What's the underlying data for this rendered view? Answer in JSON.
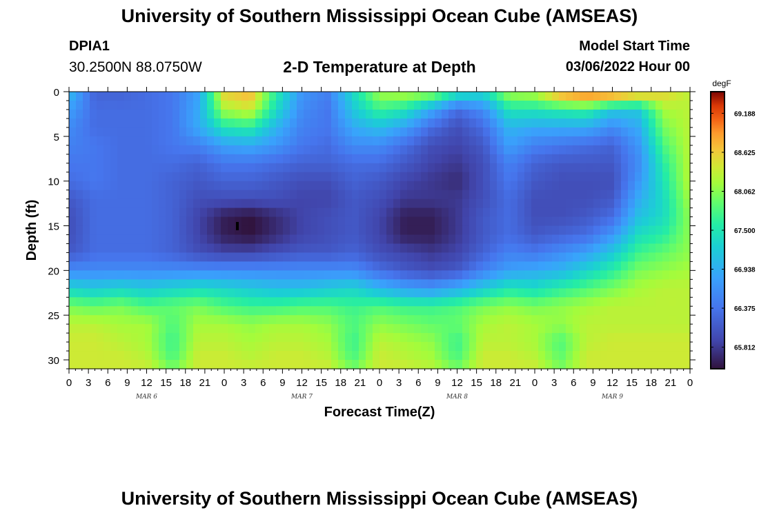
{
  "header": {
    "title": "University of Southern Mississippi Ocean Cube (AMSEAS)",
    "station_id": "DPIA1",
    "station_location": "30.2500N  88.0750W",
    "plot_title": "2-D Temperature at Depth",
    "model_start_label": "Model Start Time",
    "model_start_value": "03/06/2022 Hour 00"
  },
  "footer": {
    "title": "University of Southern Mississippi Ocean Cube (AMSEAS)"
  },
  "chart_data": {
    "type": "heatmap",
    "title": "2-D Temperature at Depth",
    "xlabel": "Forecast Time(Z)",
    "ylabel": "Depth (ft)",
    "units": "degF",
    "xlim": [
      0,
      96
    ],
    "ylim": [
      0,
      31
    ],
    "x_tick_labels": [
      "0",
      "3",
      "6",
      "9",
      "12",
      "15",
      "18",
      "21",
      "0",
      "3",
      "6",
      "9",
      "12",
      "15",
      "18",
      "21",
      "0",
      "3",
      "6",
      "9",
      "12",
      "15",
      "18",
      "21",
      "0",
      "3",
      "6",
      "9",
      "12",
      "15",
      "18",
      "21",
      "0"
    ],
    "day_labels": [
      "MAR 6",
      "MAR 7",
      "MAR 8",
      "MAR 9"
    ],
    "y_ticks": [
      0,
      5,
      10,
      15,
      20,
      25,
      30
    ],
    "colorbar_ticks": [
      "69.188",
      "68.625",
      "68.062",
      "67.500",
      "66.938",
      "66.375",
      "65.812"
    ],
    "colorbar_range": [
      65.5,
      69.5
    ],
    "x_hours": [
      0,
      4,
      8,
      12,
      16,
      20,
      24,
      28,
      32,
      36,
      40,
      44,
      48,
      52,
      56,
      60,
      64,
      68,
      72,
      76,
      80,
      84,
      88,
      92,
      96
    ],
    "depths_ft": [
      0,
      2,
      4,
      6,
      8,
      10,
      12,
      14,
      16,
      18,
      20,
      22,
      24,
      26,
      28,
      30,
      31
    ],
    "values": [
      [
        67.1,
        66.2,
        66.2,
        66.3,
        66.4,
        66.8,
        68.6,
        68.8,
        67.6,
        66.7,
        66.5,
        67.4,
        68.2,
        68.3,
        68.2,
        67.6,
        67.4,
        68.2,
        68.3,
        69.0,
        69.2,
        69.2,
        68.9,
        68.6,
        68.3
      ],
      [
        66.8,
        66.3,
        66.3,
        66.3,
        66.4,
        66.9,
        68.2,
        68.4,
        67.4,
        66.6,
        66.4,
        67.2,
        67.7,
        67.5,
        66.9,
        66.3,
        66.6,
        67.5,
        67.5,
        67.6,
        67.7,
        67.2,
        67.2,
        68.2,
        68.3
      ],
      [
        66.6,
        66.3,
        66.3,
        66.3,
        66.4,
        66.9,
        67.5,
        67.6,
        67.0,
        66.5,
        66.4,
        66.9,
        67.1,
        66.8,
        66.3,
        66.0,
        66.3,
        67.0,
        66.9,
        66.9,
        66.9,
        66.6,
        66.9,
        68.0,
        68.3
      ],
      [
        66.5,
        66.4,
        66.3,
        66.3,
        66.4,
        66.5,
        66.8,
        66.9,
        66.7,
        66.4,
        66.3,
        66.6,
        66.6,
        66.3,
        66.0,
        65.9,
        66.1,
        66.8,
        66.5,
        66.4,
        66.3,
        66.2,
        66.7,
        67.8,
        68.3
      ],
      [
        66.4,
        66.4,
        66.3,
        66.3,
        66.3,
        66.2,
        66.4,
        66.4,
        66.3,
        66.2,
        66.2,
        66.3,
        66.3,
        66.1,
        65.9,
        65.8,
        66.0,
        66.5,
        66.2,
        66.1,
        66.1,
        66.1,
        66.6,
        67.6,
        68.3
      ],
      [
        66.3,
        66.4,
        66.3,
        66.3,
        66.2,
        66.1,
        66.2,
        66.2,
        66.1,
        66.0,
        66.0,
        66.2,
        66.1,
        65.9,
        65.8,
        65.7,
        66.0,
        66.4,
        66.1,
        66.0,
        66.0,
        66.0,
        66.7,
        67.5,
        68.3
      ],
      [
        66.1,
        66.3,
        66.3,
        66.3,
        66.2,
        66.0,
        66.0,
        66.0,
        66.0,
        65.9,
        65.9,
        66.1,
        66.0,
        65.8,
        65.8,
        65.8,
        66.0,
        66.3,
        66.0,
        66.0,
        66.0,
        66.1,
        66.9,
        67.4,
        68.2
      ],
      [
        66.0,
        66.3,
        66.3,
        66.3,
        66.2,
        65.9,
        65.6,
        65.5,
        65.7,
        65.9,
        66.0,
        66.1,
        65.9,
        65.6,
        65.6,
        65.8,
        66.1,
        66.3,
        66.0,
        66.0,
        66.1,
        66.3,
        67.1,
        67.4,
        68.1
      ],
      [
        66.0,
        66.3,
        66.3,
        66.3,
        66.2,
        65.9,
        65.6,
        65.5,
        65.7,
        65.9,
        66.0,
        66.1,
        65.9,
        65.6,
        65.6,
        65.8,
        66.1,
        66.3,
        66.1,
        66.2,
        66.3,
        66.7,
        67.4,
        67.6,
        68.1
      ],
      [
        66.1,
        66.3,
        66.3,
        66.3,
        66.2,
        66.0,
        65.9,
        65.9,
        66.0,
        66.1,
        66.1,
        66.2,
        66.0,
        65.9,
        65.8,
        65.9,
        66.2,
        66.5,
        66.4,
        66.6,
        66.8,
        67.2,
        67.7,
        67.9,
        68.1
      ],
      [
        66.6,
        66.6,
        66.6,
        66.6,
        66.6,
        66.6,
        66.6,
        66.6,
        66.6,
        66.6,
        66.6,
        66.6,
        66.3,
        66.1,
        66.0,
        66.1,
        66.5,
        66.8,
        66.9,
        67.0,
        67.3,
        67.6,
        68.0,
        68.1,
        68.2
      ],
      [
        67.3,
        67.2,
        67.3,
        67.2,
        67.3,
        67.4,
        67.3,
        67.2,
        67.1,
        67.1,
        67.2,
        67.3,
        67.0,
        66.8,
        66.7,
        66.9,
        67.2,
        67.5,
        67.4,
        67.6,
        67.8,
        68.0,
        68.2,
        68.3,
        68.3
      ],
      [
        68.0,
        67.9,
        68.0,
        67.8,
        67.9,
        68.0,
        67.8,
        67.7,
        67.7,
        67.8,
        67.8,
        67.7,
        67.8,
        67.7,
        67.7,
        67.8,
        68.0,
        68.1,
        68.0,
        68.1,
        68.2,
        68.3,
        68.3,
        68.3,
        68.3
      ],
      [
        68.3,
        68.3,
        68.2,
        68.2,
        67.8,
        68.2,
        68.2,
        68.1,
        68.2,
        68.2,
        68.1,
        67.8,
        68.1,
        68.0,
        67.9,
        67.9,
        68.2,
        68.3,
        68.2,
        68.1,
        68.3,
        68.3,
        68.3,
        68.3,
        68.3
      ],
      [
        68.4,
        68.4,
        68.3,
        68.2,
        67.7,
        68.3,
        68.3,
        68.2,
        68.3,
        68.3,
        68.2,
        67.7,
        68.3,
        68.2,
        68.1,
        67.7,
        68.3,
        68.3,
        68.2,
        67.8,
        68.3,
        68.4,
        68.4,
        68.4,
        68.4
      ],
      [
        68.4,
        68.4,
        68.4,
        68.3,
        67.8,
        68.4,
        68.4,
        68.3,
        68.4,
        68.4,
        68.3,
        67.8,
        68.4,
        68.3,
        68.2,
        67.8,
        68.4,
        68.4,
        68.3,
        67.9,
        68.4,
        68.4,
        68.4,
        68.4,
        68.4
      ],
      [
        68.4,
        68.4,
        68.4,
        68.4,
        68.0,
        68.4,
        68.4,
        68.4,
        68.4,
        68.4,
        68.4,
        68.0,
        68.4,
        68.4,
        68.3,
        68.0,
        68.4,
        68.4,
        68.4,
        68.0,
        68.4,
        68.4,
        68.4,
        68.4,
        68.4
      ]
    ]
  }
}
